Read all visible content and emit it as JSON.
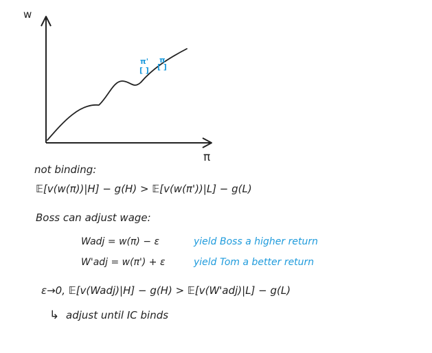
{
  "colors": {
    "ink": "#222222",
    "annotation": "#1f9bdc",
    "background": "#ffffff"
  },
  "graph": {
    "y_axis_label": "w",
    "x_axis_label": "π",
    "curve_labels": {
      "pi_prime": "π'",
      "pi": "π",
      "bracket_pi_prime": "[ ]",
      "bracket_pi": "[ ]"
    }
  },
  "notes": {
    "not_binding": "not binding:",
    "ic_line": "𝔼[v(w(π))|H] − g(H) > 𝔼[v(w(π'))|L] − g(L)",
    "boss_adjust": "Boss can adjust wage:",
    "wadj_line": "Wadj = w(π) − ε",
    "wadj_note": "yield Boss a higher return",
    "wadj_prime_line": "W'adj = w(π') + ε",
    "wadj_prime_note": "yield Tom a better return",
    "epsilon_line": "ε→0,  𝔼[v(Wadj)|H] − g(H) > 𝔼[v(W'adj)|L] − g(L)",
    "arrow_glyph": "↳",
    "adjust_line": "adjust until IC binds"
  }
}
